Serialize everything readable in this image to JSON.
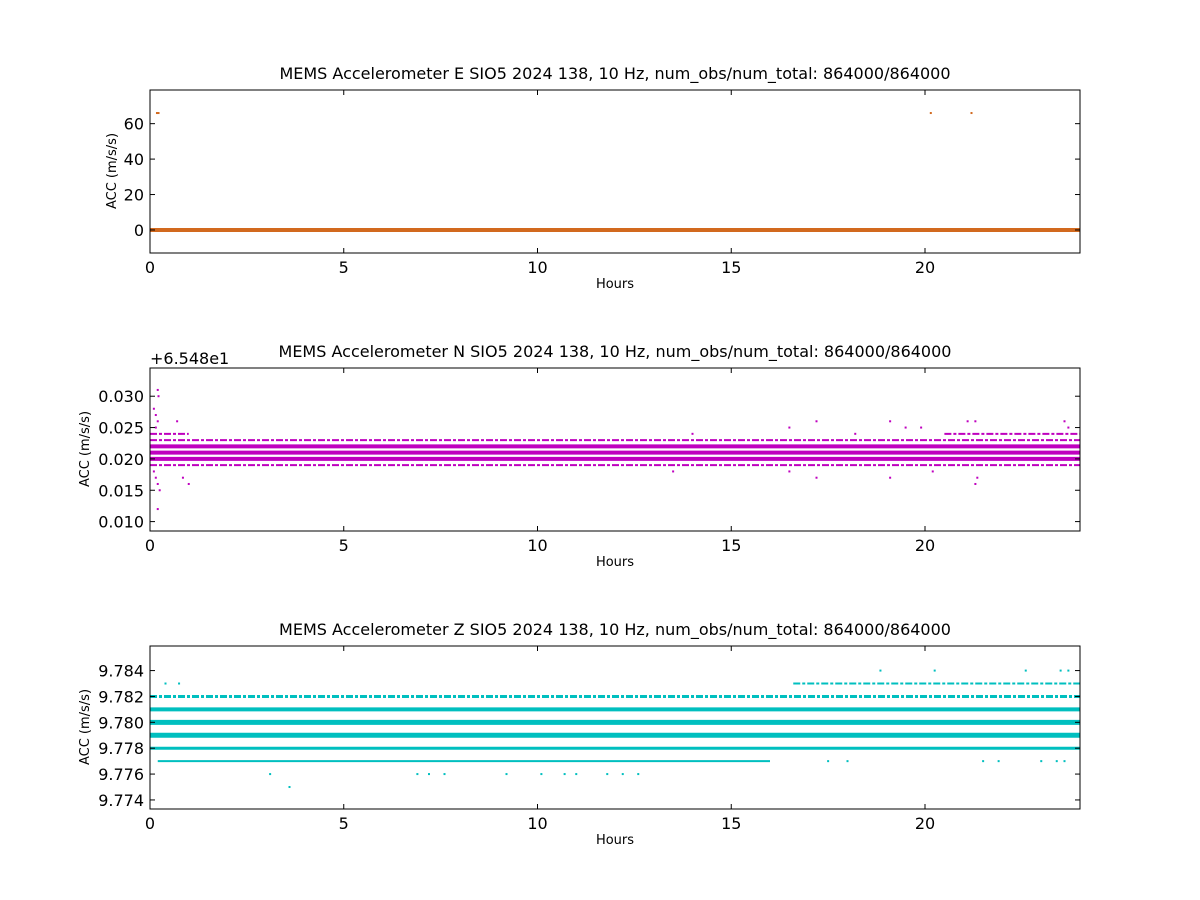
{
  "chart_data": [
    {
      "type": "scatter",
      "title": "MEMS Accelerometer E SIO5 2024 138, 10 Hz, num_obs/num_total: 864000/864000",
      "xlabel": "Hours",
      "ylabel": "ACC (m/s/s)",
      "xlim": [
        0,
        24
      ],
      "ylim": [
        -13,
        79
      ],
      "xticks": [
        0,
        5,
        10,
        15,
        20
      ],
      "xtick_labels": [
        "0",
        "5",
        "10",
        "15",
        "20"
      ],
      "yticks": [
        0,
        20,
        40,
        60
      ],
      "ytick_labels": [
        "0",
        "20",
        "40",
        "60"
      ],
      "offset_label": "",
      "grid": false,
      "color": "#d2691e",
      "series": [
        {
          "bands": [
            {
              "y": 0,
              "x0": 0,
              "x1": 24,
              "weight": 4
            }
          ],
          "points": [
            {
              "x": 0.18,
              "y": 66
            },
            {
              "x": 0.22,
              "y": 66
            },
            {
              "x": 20.15,
              "y": 66
            },
            {
              "x": 21.2,
              "y": 66
            }
          ]
        }
      ]
    },
    {
      "type": "scatter",
      "title": "MEMS Accelerometer N SIO5 2024 138, 10 Hz, num_obs/num_total: 864000/864000",
      "xlabel": "Hours",
      "ylabel": "ACC (m/s/s)",
      "xlim": [
        0,
        24
      ],
      "ylim": [
        0.0085,
        0.0345
      ],
      "xticks": [
        0,
        5,
        10,
        15,
        20
      ],
      "xtick_labels": [
        "0",
        "5",
        "10",
        "15",
        "20"
      ],
      "yticks": [
        0.01,
        0.015,
        0.02,
        0.025,
        0.03
      ],
      "ytick_labels": [
        "0.010",
        "0.015",
        "0.020",
        "0.025",
        "0.030"
      ],
      "offset_label": "+6.548e1",
      "grid": false,
      "color": "#bf00bf",
      "series": [
        {
          "bands": [
            {
              "y": 0.019,
              "x0": 0,
              "x1": 24,
              "weight": 2,
              "dashed": true
            },
            {
              "y": 0.02,
              "x0": 0,
              "x1": 24,
              "weight": 4
            },
            {
              "y": 0.021,
              "x0": 0,
              "x1": 24,
              "weight": 4
            },
            {
              "y": 0.022,
              "x0": 0,
              "x1": 24,
              "weight": 4
            },
            {
              "y": 0.023,
              "x0": 0,
              "x1": 24,
              "weight": 2,
              "dashed": true
            },
            {
              "y": 0.024,
              "x0": 0,
              "x1": 1.0,
              "weight": 2,
              "dashed": true
            },
            {
              "y": 0.024,
              "x0": 20.5,
              "x1": 24,
              "weight": 2,
              "dashed": true
            }
          ],
          "points": [
            {
              "x": 0.1,
              "y": 0.028
            },
            {
              "x": 0.15,
              "y": 0.027
            },
            {
              "x": 0.2,
              "y": 0.031
            },
            {
              "x": 0.22,
              "y": 0.03
            },
            {
              "x": 0.2,
              "y": 0.026
            },
            {
              "x": 0.15,
              "y": 0.025
            },
            {
              "x": 0.1,
              "y": 0.018
            },
            {
              "x": 0.15,
              "y": 0.017
            },
            {
              "x": 0.2,
              "y": 0.016
            },
            {
              "x": 0.25,
              "y": 0.015
            },
            {
              "x": 0.2,
              "y": 0.012
            },
            {
              "x": 0.7,
              "y": 0.026
            },
            {
              "x": 0.85,
              "y": 0.017
            },
            {
              "x": 1.0,
              "y": 0.016
            },
            {
              "x": 14.0,
              "y": 0.024
            },
            {
              "x": 13.5,
              "y": 0.018
            },
            {
              "x": 16.5,
              "y": 0.025
            },
            {
              "x": 16.5,
              "y": 0.018
            },
            {
              "x": 17.2,
              "y": 0.026
            },
            {
              "x": 17.2,
              "y": 0.017
            },
            {
              "x": 18.2,
              "y": 0.024
            },
            {
              "x": 19.1,
              "y": 0.026
            },
            {
              "x": 19.1,
              "y": 0.017
            },
            {
              "x": 19.5,
              "y": 0.025
            },
            {
              "x": 19.9,
              "y": 0.025
            },
            {
              "x": 20.2,
              "y": 0.018
            },
            {
              "x": 21.1,
              "y": 0.026
            },
            {
              "x": 21.3,
              "y": 0.026
            },
            {
              "x": 21.3,
              "y": 0.016
            },
            {
              "x": 21.35,
              "y": 0.017
            },
            {
              "x": 23.6,
              "y": 0.026
            },
            {
              "x": 23.7,
              "y": 0.025
            }
          ]
        }
      ]
    },
    {
      "type": "scatter",
      "title": "MEMS Accelerometer Z SIO5 2024 138, 10 Hz, num_obs/num_total: 864000/864000",
      "xlabel": "Hours",
      "ylabel": "ACC (m/s/s)",
      "xlim": [
        0,
        24
      ],
      "ylim": [
        9.7733,
        9.7859
      ],
      "xticks": [
        0,
        5,
        10,
        15,
        20
      ],
      "xtick_labels": [
        "0",
        "5",
        "10",
        "15",
        "20"
      ],
      "yticks": [
        9.774,
        9.776,
        9.778,
        9.78,
        9.782,
        9.784
      ],
      "ytick_labels": [
        "9.774",
        "9.776",
        "9.778",
        "9.780",
        "9.782",
        "9.784"
      ],
      "offset_label": "",
      "grid": false,
      "color": "#00bfbf",
      "series": [
        {
          "bands": [
            {
              "y": 9.777,
              "x0": 0.2,
              "x1": 16.0,
              "weight": 2
            },
            {
              "y": 9.778,
              "x0": 0,
              "x1": 24,
              "weight": 3
            },
            {
              "y": 9.779,
              "x0": 0,
              "x1": 24,
              "weight": 5
            },
            {
              "y": 9.78,
              "x0": 0,
              "x1": 24,
              "weight": 5
            },
            {
              "y": 9.781,
              "x0": 0,
              "x1": 24,
              "weight": 4
            },
            {
              "y": 9.782,
              "x0": 0,
              "x1": 24,
              "weight": 3,
              "dashed": true
            },
            {
              "y": 9.783,
              "x0": 16.6,
              "x1": 24,
              "weight": 2,
              "dashed": true
            }
          ],
          "points": [
            {
              "x": 0.4,
              "y": 9.783
            },
            {
              "x": 0.75,
              "y": 9.783
            },
            {
              "x": 3.1,
              "y": 9.776
            },
            {
              "x": 3.6,
              "y": 9.775
            },
            {
              "x": 6.9,
              "y": 9.776
            },
            {
              "x": 7.2,
              "y": 9.776
            },
            {
              "x": 7.6,
              "y": 9.776
            },
            {
              "x": 9.2,
              "y": 9.776
            },
            {
              "x": 10.1,
              "y": 9.776
            },
            {
              "x": 10.7,
              "y": 9.776
            },
            {
              "x": 11.0,
              "y": 9.776
            },
            {
              "x": 11.8,
              "y": 9.776
            },
            {
              "x": 12.2,
              "y": 9.776
            },
            {
              "x": 12.6,
              "y": 9.776
            },
            {
              "x": 17.5,
              "y": 9.777
            },
            {
              "x": 18.0,
              "y": 9.777
            },
            {
              "x": 18.85,
              "y": 9.784
            },
            {
              "x": 19.4,
              "y": 9.778
            },
            {
              "x": 20.25,
              "y": 9.784
            },
            {
              "x": 21.5,
              "y": 9.777
            },
            {
              "x": 21.9,
              "y": 9.777
            },
            {
              "x": 22.6,
              "y": 9.784
            },
            {
              "x": 23.0,
              "y": 9.777
            },
            {
              "x": 23.5,
              "y": 9.784
            },
            {
              "x": 23.7,
              "y": 9.784
            },
            {
              "x": 23.4,
              "y": 9.777
            },
            {
              "x": 23.6,
              "y": 9.777
            }
          ]
        }
      ]
    }
  ]
}
